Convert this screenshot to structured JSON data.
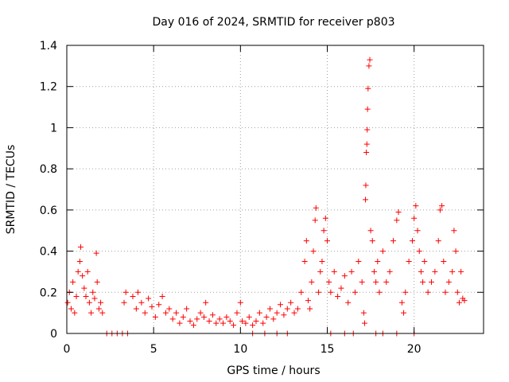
{
  "chart_data": {
    "type": "scatter",
    "title": "Day 016 of 2024, SRMTID for receiver p803",
    "xlabel": "GPS time / hours",
    "ylabel": "SRMTID / TECUs",
    "xlim": [
      0,
      24
    ],
    "ylim": [
      0,
      1.4
    ],
    "xticks": [
      0,
      5,
      10,
      15,
      20
    ],
    "xtick_labels": [
      "0",
      "5",
      "10",
      "15",
      "20"
    ],
    "yticks": [
      0,
      0.2,
      0.4,
      0.6,
      0.8,
      1.0,
      1.2,
      1.4
    ],
    "ytick_labels": [
      "0",
      "0.2",
      "0.4",
      "0.6",
      "0.8",
      "1",
      "1.2",
      "1.4"
    ],
    "grid": true,
    "marker": "+",
    "series": [
      {
        "name": "SRMTID",
        "color": "#ff0000",
        "points": [
          [
            0.05,
            0.15
          ],
          [
            0.15,
            0.2
          ],
          [
            0.25,
            0.12
          ],
          [
            0.35,
            0.25
          ],
          [
            0.45,
            0.1
          ],
          [
            0.55,
            0.18
          ],
          [
            0.65,
            0.3
          ],
          [
            0.75,
            0.35
          ],
          [
            0.8,
            0.42
          ],
          [
            0.9,
            0.28
          ],
          [
            1.0,
            0.22
          ],
          [
            1.1,
            0.18
          ],
          [
            1.2,
            0.3
          ],
          [
            1.3,
            0.15
          ],
          [
            1.4,
            0.1
          ],
          [
            1.5,
            0.2
          ],
          [
            1.6,
            0.17
          ],
          [
            1.7,
            0.39
          ],
          [
            1.75,
            0.25
          ],
          [
            1.85,
            0.12
          ],
          [
            1.95,
            0.15
          ],
          [
            2.05,
            0.1
          ],
          [
            2.3,
            0.0
          ],
          [
            2.6,
            0.0
          ],
          [
            2.9,
            0.0
          ],
          [
            3.2,
            0.0
          ],
          [
            3.5,
            0.0
          ],
          [
            3.3,
            0.15
          ],
          [
            3.4,
            0.2
          ],
          [
            3.8,
            0.18
          ],
          [
            4.0,
            0.12
          ],
          [
            4.1,
            0.2
          ],
          [
            4.3,
            0.15
          ],
          [
            4.5,
            0.1
          ],
          [
            4.7,
            0.17
          ],
          [
            4.9,
            0.13
          ],
          [
            5.1,
            0.08
          ],
          [
            5.3,
            0.14
          ],
          [
            5.5,
            0.18
          ],
          [
            5.7,
            0.1
          ],
          [
            5.9,
            0.12
          ],
          [
            6.1,
            0.07
          ],
          [
            6.3,
            0.1
          ],
          [
            6.5,
            0.05
          ],
          [
            6.7,
            0.08
          ],
          [
            6.9,
            0.12
          ],
          [
            7.1,
            0.06
          ],
          [
            7.3,
            0.04
          ],
          [
            7.5,
            0.07
          ],
          [
            7.7,
            0.1
          ],
          [
            7.9,
            0.08
          ],
          [
            8.0,
            0.15
          ],
          [
            8.2,
            0.06
          ],
          [
            8.4,
            0.09
          ],
          [
            8.6,
            0.05
          ],
          [
            8.8,
            0.07
          ],
          [
            9.0,
            0.05
          ],
          [
            9.2,
            0.08
          ],
          [
            9.4,
            0.06
          ],
          [
            9.6,
            0.04
          ],
          [
            9.8,
            0.1
          ],
          [
            10.0,
            0.15
          ],
          [
            10.1,
            0.06
          ],
          [
            10.3,
            0.05
          ],
          [
            10.5,
            0.08
          ],
          [
            10.7,
            0.04
          ],
          [
            10.9,
            0.06
          ],
          [
            11.1,
            0.1
          ],
          [
            11.3,
            0.05
          ],
          [
            11.5,
            0.08
          ],
          [
            10.7,
            0.0
          ],
          [
            11.4,
            0.0
          ],
          [
            12.1,
            0.0
          ],
          [
            12.7,
            0.0
          ],
          [
            11.7,
            0.12
          ],
          [
            11.9,
            0.07
          ],
          [
            12.1,
            0.1
          ],
          [
            12.3,
            0.14
          ],
          [
            12.5,
            0.09
          ],
          [
            12.7,
            0.12
          ],
          [
            12.9,
            0.15
          ],
          [
            13.1,
            0.1
          ],
          [
            13.3,
            0.12
          ],
          [
            13.5,
            0.2
          ],
          [
            13.7,
            0.35
          ],
          [
            13.8,
            0.45
          ],
          [
            13.9,
            0.16
          ],
          [
            14.0,
            0.12
          ],
          [
            14.1,
            0.25
          ],
          [
            14.2,
            0.4
          ],
          [
            14.3,
            0.55
          ],
          [
            14.35,
            0.61
          ],
          [
            14.5,
            0.2
          ],
          [
            14.6,
            0.3
          ],
          [
            14.7,
            0.35
          ],
          [
            14.8,
            0.5
          ],
          [
            14.9,
            0.56
          ],
          [
            15.0,
            0.45
          ],
          [
            15.1,
            0.25
          ],
          [
            15.2,
            0.2
          ],
          [
            15.4,
            0.3
          ],
          [
            15.6,
            0.18
          ],
          [
            15.8,
            0.22
          ],
          [
            16.0,
            0.28
          ],
          [
            16.2,
            0.15
          ],
          [
            16.4,
            0.3
          ],
          [
            16.6,
            0.2
          ],
          [
            16.8,
            0.35
          ],
          [
            17.0,
            0.25
          ],
          [
            15.2,
            0.0
          ],
          [
            16.0,
            0.0
          ],
          [
            16.5,
            0.0
          ],
          [
            17.8,
            0.0
          ],
          [
            18.2,
            0.0
          ],
          [
            19.0,
            0.0
          ],
          [
            20.0,
            0.0
          ],
          [
            17.1,
            0.1
          ],
          [
            17.15,
            0.05
          ],
          [
            17.2,
            0.65
          ],
          [
            17.22,
            0.72
          ],
          [
            17.25,
            0.88
          ],
          [
            17.28,
            0.92
          ],
          [
            17.3,
            0.99
          ],
          [
            17.32,
            1.09
          ],
          [
            17.35,
            1.19
          ],
          [
            17.4,
            1.3
          ],
          [
            17.45,
            1.33
          ],
          [
            17.5,
            0.5
          ],
          [
            17.6,
            0.45
          ],
          [
            17.7,
            0.3
          ],
          [
            17.8,
            0.25
          ],
          [
            17.9,
            0.35
          ],
          [
            18.0,
            0.2
          ],
          [
            18.2,
            0.4
          ],
          [
            18.4,
            0.25
          ],
          [
            18.6,
            0.3
          ],
          [
            18.8,
            0.45
          ],
          [
            19.0,
            0.55
          ],
          [
            19.1,
            0.59
          ],
          [
            19.3,
            0.15
          ],
          [
            19.4,
            0.1
          ],
          [
            19.5,
            0.2
          ],
          [
            19.7,
            0.35
          ],
          [
            19.9,
            0.45
          ],
          [
            20.0,
            0.56
          ],
          [
            20.1,
            0.62
          ],
          [
            20.2,
            0.5
          ],
          [
            20.3,
            0.4
          ],
          [
            20.4,
            0.3
          ],
          [
            20.5,
            0.25
          ],
          [
            20.6,
            0.35
          ],
          [
            20.8,
            0.2
          ],
          [
            21.0,
            0.25
          ],
          [
            21.2,
            0.3
          ],
          [
            21.4,
            0.45
          ],
          [
            21.5,
            0.6
          ],
          [
            21.6,
            0.62
          ],
          [
            21.7,
            0.35
          ],
          [
            21.8,
            0.2
          ],
          [
            22.0,
            0.25
          ],
          [
            22.2,
            0.3
          ],
          [
            22.3,
            0.5
          ],
          [
            22.4,
            0.4
          ],
          [
            22.5,
            0.2
          ],
          [
            22.6,
            0.15
          ],
          [
            22.7,
            0.3
          ],
          [
            22.8,
            0.17
          ],
          [
            22.9,
            0.16
          ]
        ]
      }
    ]
  }
}
